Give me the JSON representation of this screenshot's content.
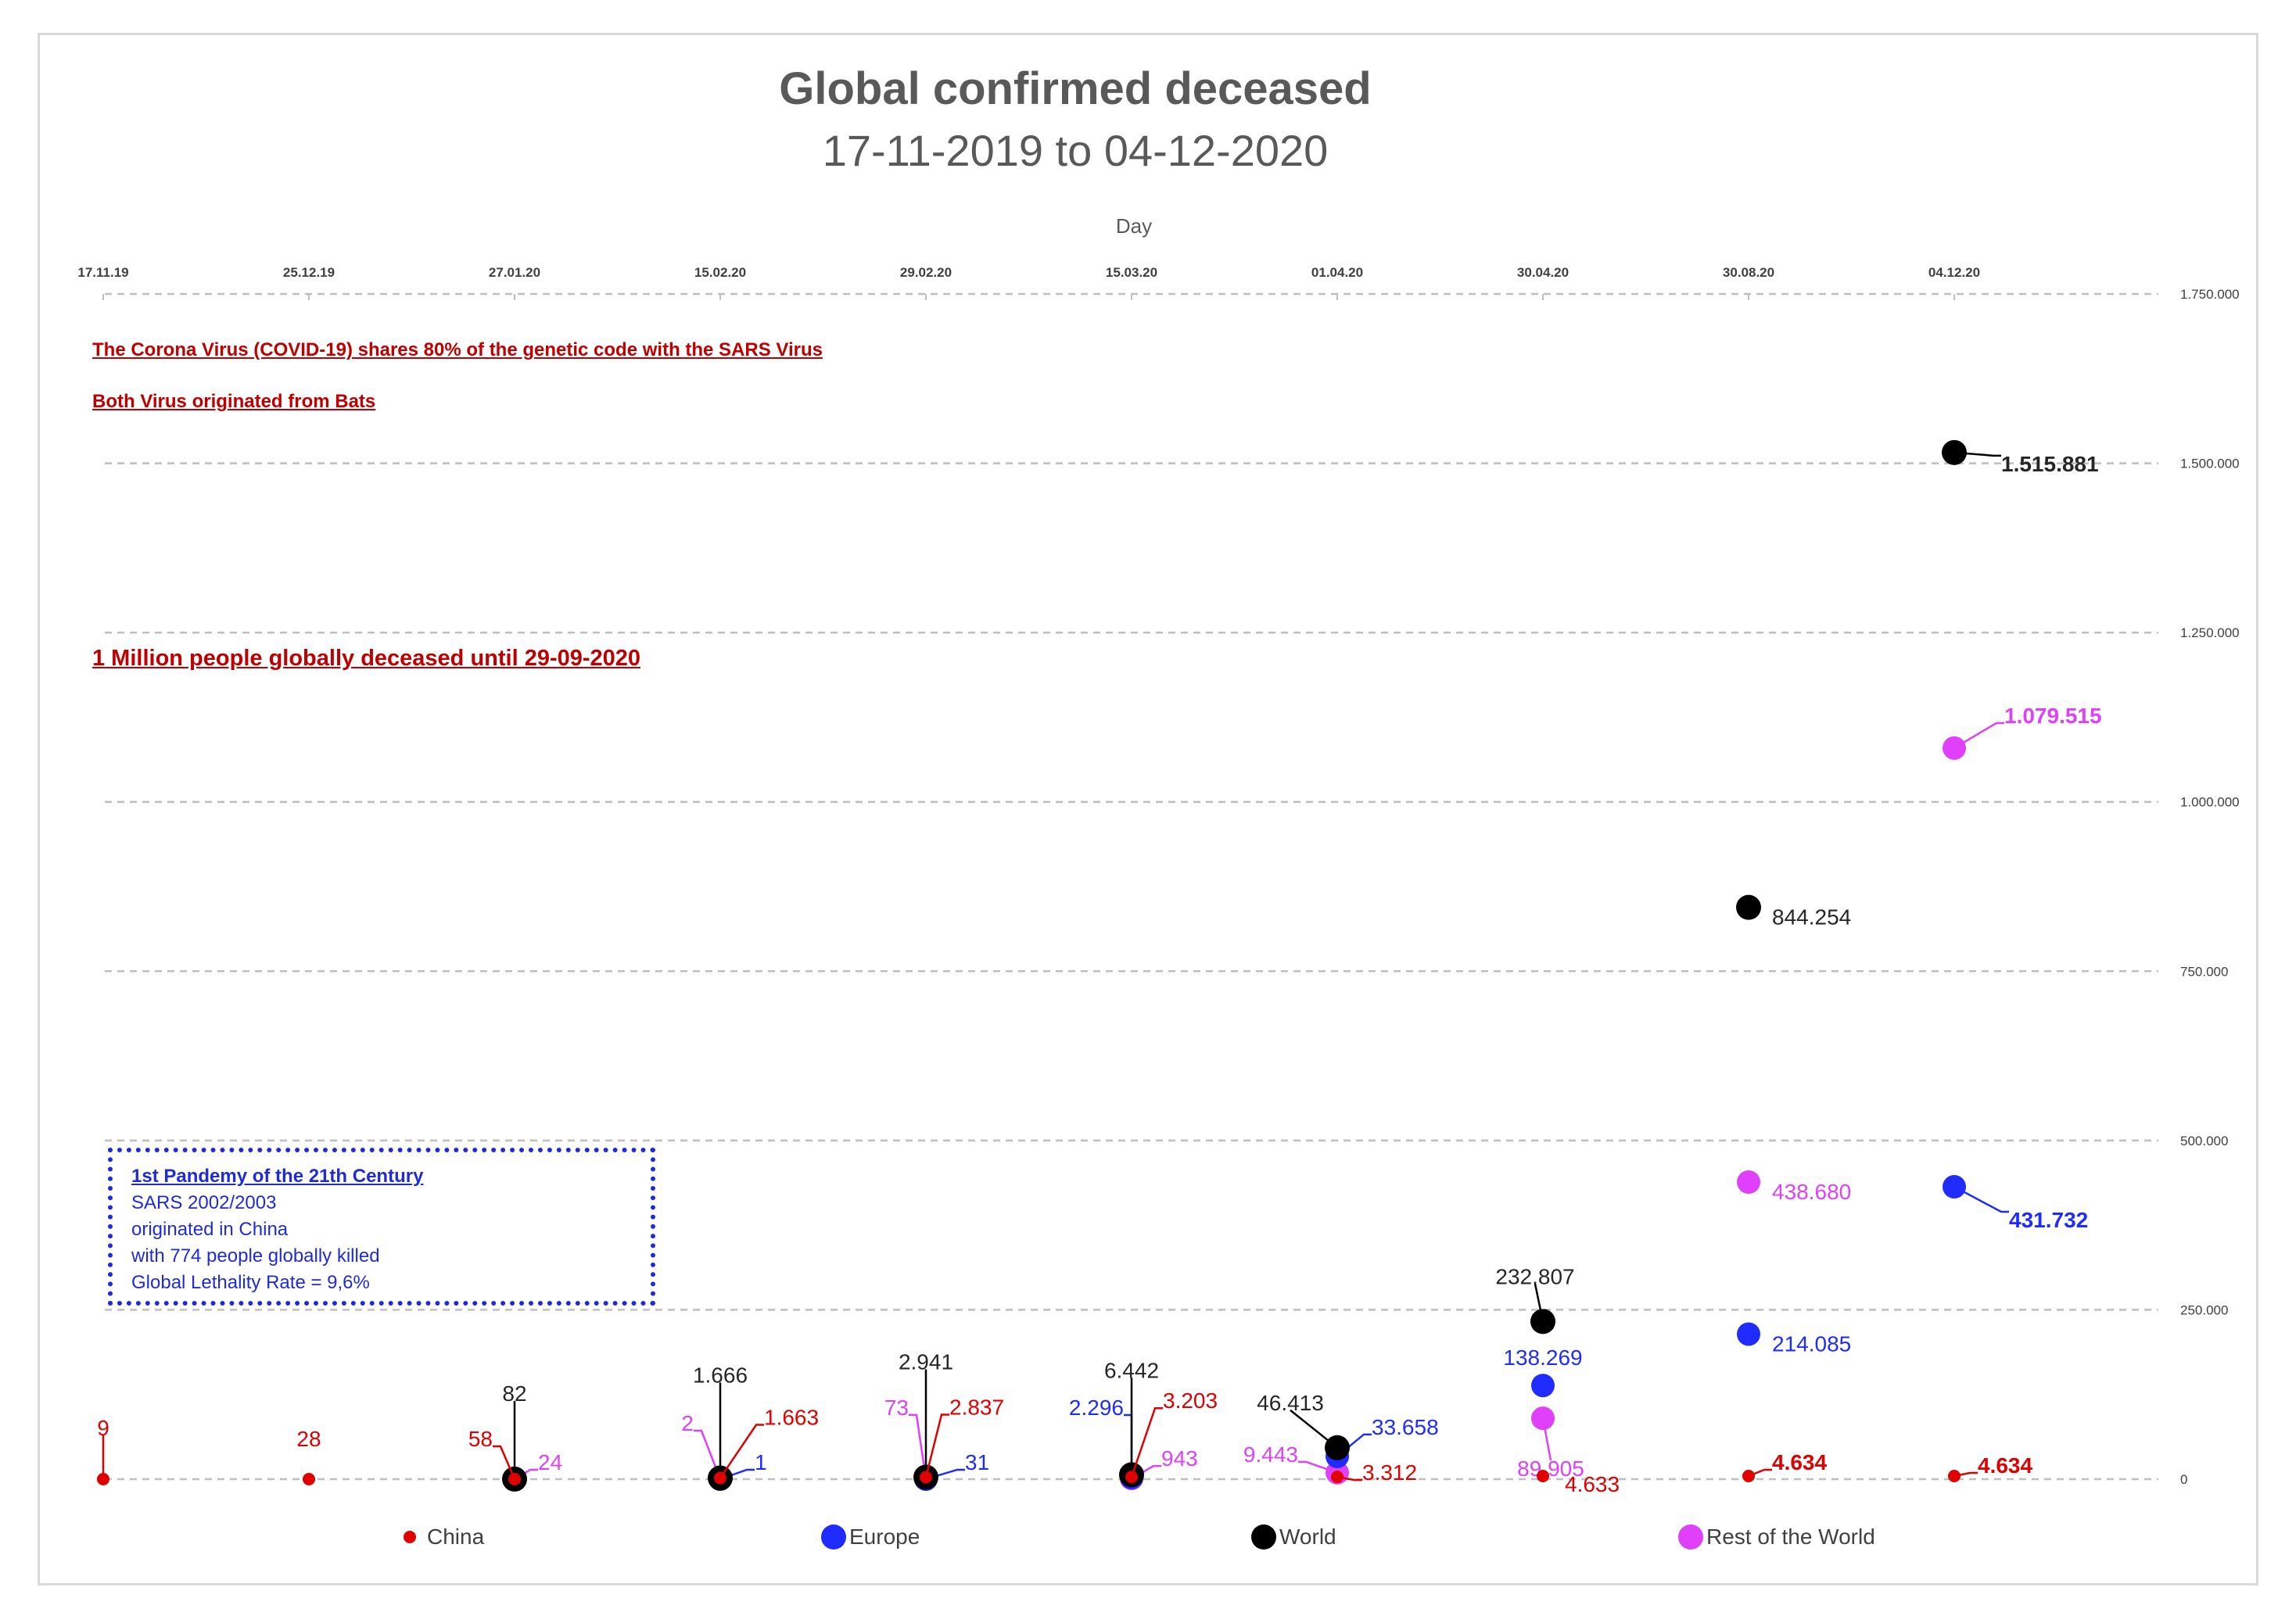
{
  "chart_data": {
    "type": "scatter",
    "title": "Global confirmed deceased",
    "subtitle": "17-11-2019 to 04-12-2020",
    "xlabel": "Day",
    "ylabel": "",
    "x_categories": [
      "17.11.19",
      "25.12.19",
      "27.01.20",
      "15.02.20",
      "29.02.20",
      "15.03.20",
      "01.04.20",
      "30.04.20",
      "30.08.20",
      "04.12.20"
    ],
    "ylim": [
      0,
      1750000
    ],
    "y_ticks": [
      "0",
      "250.000",
      "500.000",
      "750.000",
      "1.000.000",
      "1.250.000",
      "1.500.000",
      "1.750.000"
    ],
    "y_axis_position": "right",
    "x_axis_position": "top",
    "grid": true,
    "legend_position": "bottom",
    "series": [
      {
        "name": "China",
        "color": "#e00000",
        "values": [
          9,
          28,
          58,
          1663,
          2837,
          3203,
          3312,
          4633,
          4634,
          4634
        ],
        "labels": [
          "9",
          "28",
          "58",
          "1.663",
          "2.837",
          "3.203",
          "3.312",
          "4.633",
          "4.634",
          "4.634"
        ]
      },
      {
        "name": "Europe",
        "color": "#1f2bff",
        "values": [
          null,
          null,
          null,
          1,
          31,
          2296,
          33658,
          138269,
          214085,
          431732
        ],
        "labels": [
          "",
          "",
          "",
          "1",
          "31",
          "2.296",
          "33.658",
          "138.269",
          "214.085",
          "431.732"
        ]
      },
      {
        "name": "World",
        "color": "#000000",
        "values": [
          null,
          null,
          82,
          1666,
          2941,
          6442,
          46413,
          232807,
          844254,
          1515881
        ],
        "labels": [
          "",
          "",
          "82",
          "1.666",
          "2.941",
          "6.442",
          "46.413",
          "232.807",
          "844.254",
          "1.515.881"
        ]
      },
      {
        "name": "Rest of the World",
        "color": "#e040fb",
        "values": [
          null,
          null,
          24,
          2,
          73,
          943,
          9443,
          89905,
          438680,
          1079515
        ],
        "labels": [
          "",
          "",
          "24",
          "2",
          "73",
          "943",
          "9.443",
          "89.905",
          "438.680",
          "1.079.515"
        ]
      }
    ],
    "annotations": [
      "The Corona Virus (COVID-19)  shares 80% of the genetic code with the SARS Virus",
      "Both Virus originated from Bats",
      "1 Million people globally deceased until 29-09-2020"
    ]
  },
  "sars_box": {
    "heading": "1st Pandemy of the 21th Century",
    "lines": [
      "SARS 2002/2003",
      "originated in China",
      "with 774 people globally killed",
      "Global Lethality Rate = 9,6%"
    ]
  }
}
